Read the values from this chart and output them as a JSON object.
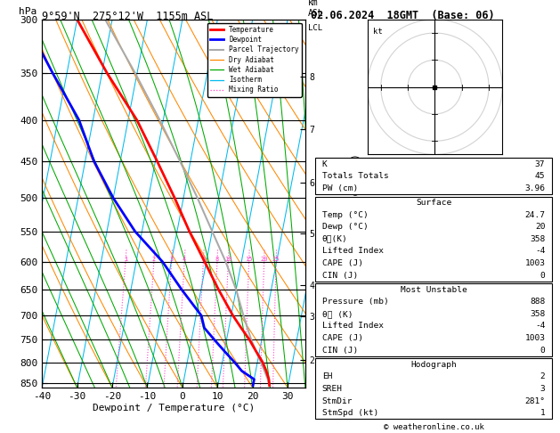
{
  "title_left": "9°59'N  275°12'W  1155m ASL",
  "title_right": "02.06.2024  18GMT  (Base: 06)",
  "xlabel": "Dewpoint / Temperature (°C)",
  "ylabel_left": "hPa",
  "isotherm_color": "#00bbee",
  "dry_adiabat_color": "#ff8800",
  "wet_adiabat_color": "#00aa00",
  "mixing_ratio_color": "#ff44cc",
  "temperature_profile_color": "#ff0000",
  "dewpoint_profile_color": "#0000ff",
  "parcel_trajectory_color": "#aaaaaa",
  "legend_items": [
    {
      "label": "Temperature",
      "color": "#ff0000",
      "lw": 2.0,
      "ls": "-"
    },
    {
      "label": "Dewpoint",
      "color": "#0000ff",
      "lw": 2.0,
      "ls": "-"
    },
    {
      "label": "Parcel Trajectory",
      "color": "#aaaaaa",
      "lw": 1.5,
      "ls": "-"
    },
    {
      "label": "Dry Adiabat",
      "color": "#ff8800",
      "lw": 0.9,
      "ls": "-"
    },
    {
      "label": "Wet Adiabat",
      "color": "#00aa00",
      "lw": 0.9,
      "ls": "-"
    },
    {
      "label": "Isotherm",
      "color": "#00bbee",
      "lw": 0.9,
      "ls": "-"
    },
    {
      "label": "Mixing Ratio",
      "color": "#ff44cc",
      "lw": 0.9,
      "ls": ":"
    }
  ],
  "pressure_levels": [
    300,
    350,
    400,
    450,
    500,
    550,
    600,
    650,
    700,
    750,
    800,
    850
  ],
  "temp_ticks": [
    -40,
    -30,
    -20,
    -10,
    0,
    10,
    20,
    30
  ],
  "P_min": 300,
  "P_max": 860,
  "T_min": -40,
  "T_max": 35,
  "skew": 45.0,
  "km_labels": [
    {
      "km": 8,
      "pressure": 353
    },
    {
      "km": 7,
      "pressure": 411
    },
    {
      "km": 6,
      "pressure": 478
    },
    {
      "km": 5,
      "pressure": 554
    },
    {
      "km": 4,
      "pressure": 642
    },
    {
      "km": 3,
      "pressure": 701
    },
    {
      "km": 2,
      "pressure": 795
    }
  ],
  "lcl_pressure": 840,
  "mixing_ratio_values": [
    1,
    2,
    3,
    4,
    6,
    8,
    10,
    15,
    20,
    25
  ],
  "temp_data": {
    "pressure": [
      855,
      840,
      820,
      800,
      775,
      750,
      725,
      700,
      650,
      600,
      550,
      500,
      450,
      400,
      350,
      300
    ],
    "temp": [
      24.7,
      24.2,
      23.0,
      21.5,
      19.0,
      16.5,
      13.5,
      10.5,
      5.0,
      -0.5,
      -6.5,
      -12.5,
      -19.5,
      -27.5,
      -38.5,
      -50.0
    ]
  },
  "dewp_data": {
    "pressure": [
      855,
      840,
      820,
      800,
      775,
      750,
      725,
      700,
      650,
      600,
      550,
      500,
      450,
      400,
      350,
      300
    ],
    "temp": [
      20.0,
      20.0,
      16.0,
      13.5,
      10.0,
      6.5,
      3.0,
      1.5,
      -5.5,
      -12.5,
      -22.0,
      -30.0,
      -37.5,
      -44.0,
      -54.0,
      -65.0
    ]
  },
  "parcel_data": {
    "pressure": [
      855,
      840,
      820,
      800,
      775,
      750,
      700,
      650,
      600,
      550,
      500,
      450,
      400,
      350,
      300
    ],
    "temp": [
      24.7,
      23.9,
      22.5,
      21.0,
      19.0,
      17.0,
      13.5,
      10.0,
      5.5,
      0.0,
      -6.0,
      -13.0,
      -21.0,
      -30.5,
      -42.0
    ]
  },
  "stats_K": 37,
  "stats_TT": 45,
  "stats_PW": "3.96",
  "surf_temp": "24.7",
  "surf_dewp": "20",
  "surf_theta": "358",
  "surf_li": "-4",
  "surf_cape": "1003",
  "surf_cin": "0",
  "mu_pres": "888",
  "mu_theta": "358",
  "mu_li": "-4",
  "mu_cape": "1003",
  "mu_cin": "0",
  "hodo_eh": "2",
  "hodo_sreh": "3",
  "hodo_stmdir": "281°",
  "hodo_stmspd": "1",
  "footer": "© weatheronline.co.uk"
}
